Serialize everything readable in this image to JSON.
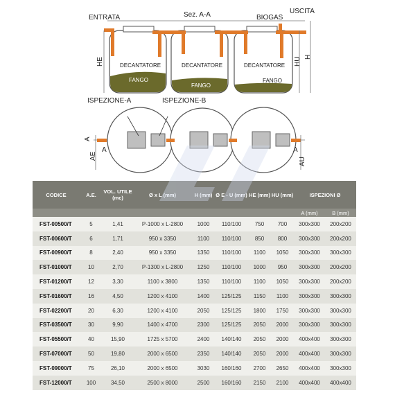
{
  "diagram": {
    "entrata": "ENTRATA",
    "section": "Sez. A-A",
    "biogas": "BIOGAS",
    "uscita": "USCITA",
    "he": "HE",
    "hu": "HU",
    "h": "H",
    "decantatore": "DECANTATORE",
    "fango": "FANGO",
    "ispezione_a": "ISPEZIONE-A",
    "ispezione_b": "ISPEZIONE-B",
    "a": "A",
    "ae": "AE",
    "au": "AU",
    "colors": {
      "tank_outline": "#555555",
      "sludge": "#6b6a2c",
      "pipe": "#e07a2a",
      "inspection": "#7f7f7f"
    }
  },
  "table": {
    "headers": [
      "CODICE",
      "A.E.",
      "VOL. UTILE (mc)",
      "Ø x L (mm)",
      "H (mm)",
      "Ø E - U (mm)",
      "HE (mm)",
      "HU (mm)",
      "ISPEZIONI Ø"
    ],
    "subheaders": [
      "A (mm)",
      "B (mm)"
    ],
    "rows": [
      [
        "FST-00500/T",
        "5",
        "1,41",
        "P-1000 x L-2800",
        "1000",
        "110/100",
        "750",
        "700",
        "300x300",
        "200x200"
      ],
      [
        "FST-00600/T",
        "6",
        "1,71",
        "950 x 3350",
        "1100",
        "110/100",
        "850",
        "800",
        "300x300",
        "200x200"
      ],
      [
        "FST-00900/T",
        "8",
        "2,40",
        "950 x 3350",
        "1350",
        "110/100",
        "1100",
        "1050",
        "300x300",
        "300x300"
      ],
      [
        "FST-01000/T",
        "10",
        "2,70",
        "P-1300 x L-2800",
        "1250",
        "110/100",
        "1000",
        "950",
        "300x300",
        "200x200"
      ],
      [
        "FST-01200/T",
        "12",
        "3,30",
        "1100 x 3800",
        "1350",
        "110/100",
        "1100",
        "1050",
        "300x300",
        "200x200"
      ],
      [
        "FST-01600/T",
        "16",
        "4,50",
        "1200 x 4100",
        "1400",
        "125/125",
        "1150",
        "1100",
        "300x300",
        "300x300"
      ],
      [
        "FST-02200/T",
        "20",
        "6,30",
        "1200 x 4100",
        "2050",
        "125/125",
        "1800",
        "1750",
        "300x300",
        "300x300"
      ],
      [
        "FST-03500/T",
        "30",
        "9,90",
        "1400 x 4700",
        "2300",
        "125/125",
        "2050",
        "2000",
        "300x300",
        "300x300"
      ],
      [
        "FST-05500/T",
        "40",
        "15,90",
        "1725 x 5700",
        "2400",
        "140/140",
        "2050",
        "2000",
        "400x400",
        "300x300"
      ],
      [
        "FST-07000/T",
        "50",
        "19,80",
        "2000 x 6500",
        "2350",
        "140/140",
        "2050",
        "2000",
        "400x400",
        "300x300"
      ],
      [
        "FST-09000/T",
        "75",
        "26,10",
        "2000 x 6500",
        "3030",
        "160/160",
        "2700",
        "2650",
        "400x400",
        "300x300"
      ],
      [
        "FST-12000/T",
        "100",
        "34,50",
        "2500 x 8000",
        "2500",
        "160/160",
        "2150",
        "2100",
        "400x400",
        "400x400"
      ]
    ]
  }
}
